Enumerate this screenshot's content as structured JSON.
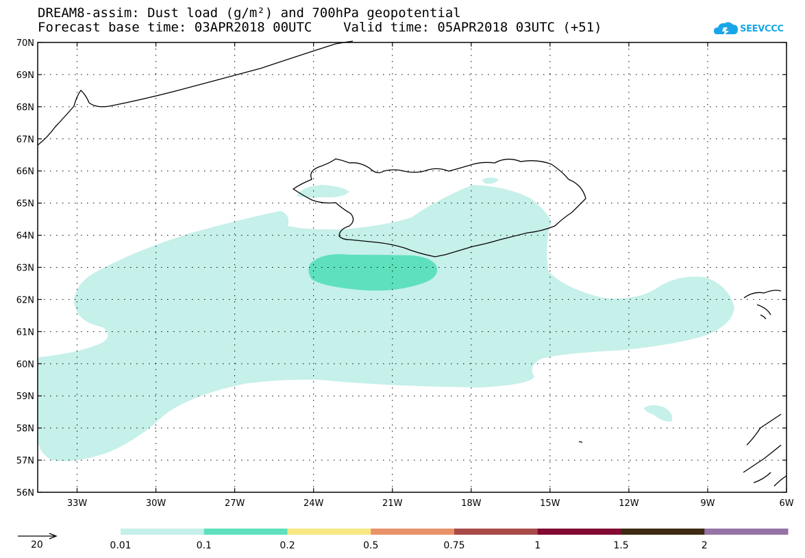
{
  "title": {
    "line1": "DREAM8-assim: Dust load (g/m²) and 700hPa geopotential",
    "line2": "Forecast base time: 03APR2018 00UTC    Valid time: 05APR2018 03UTC (+51)"
  },
  "logo": {
    "text": "SEEVCCC",
    "color": "#19a6e8"
  },
  "map": {
    "lon_range": [
      -34.5,
      -6.0
    ],
    "lat_range": [
      56.0,
      70.0
    ],
    "lat_ticks": [
      "70N",
      "69N",
      "68N",
      "67N",
      "66N",
      "65N",
      "64N",
      "63N",
      "62N",
      "61N",
      "60N",
      "59N",
      "58N",
      "57N",
      "56N"
    ],
    "lon_ticks": [
      "33W",
      "30W",
      "27W",
      "24W",
      "21W",
      "18W",
      "15W",
      "12W",
      "9W",
      "6W"
    ]
  },
  "legend": {
    "vector_label": "20",
    "levels": [
      "0.01",
      "0.1",
      "0.2",
      "0.5",
      "0.75",
      "1",
      "1.5",
      "2"
    ],
    "colors": [
      "#c6f0ea",
      "#5fe0bd",
      "#f8e883",
      "#e9926a",
      "#a84b48",
      "#820a33",
      "#3e2a12",
      "#9673a6"
    ]
  }
}
